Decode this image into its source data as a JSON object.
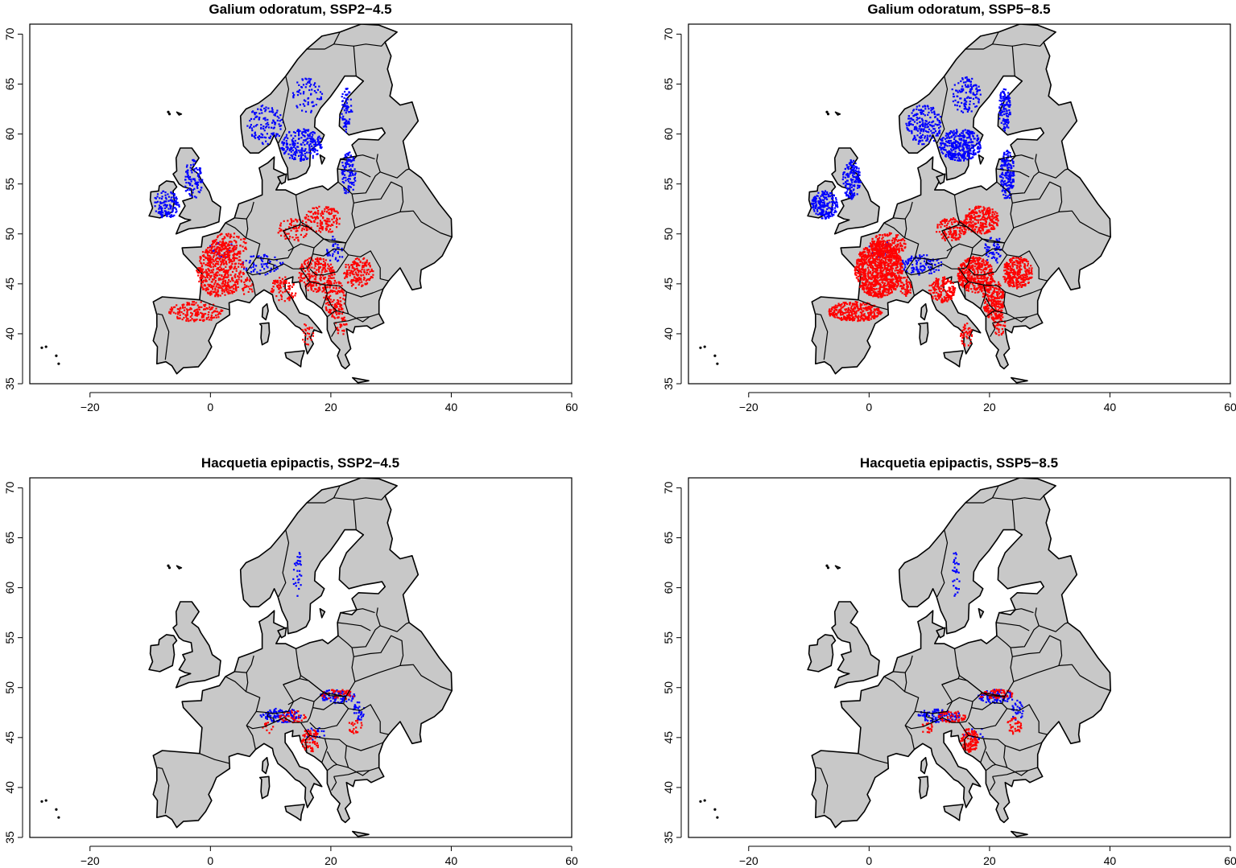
{
  "figure": {
    "panels": [
      {
        "title": "Galium odoratum, SSP2−4.5",
        "gain_level": 0.45,
        "loss_level": 0.55,
        "species": "galium"
      },
      {
        "title": "Galium odoratum, SSP5−8.5",
        "gain_level": 0.75,
        "loss_level": 1.0,
        "species": "galium"
      },
      {
        "title": "Hacquetia epipactis, SSP2−4.5",
        "gain_level": 0.5,
        "loss_level": 0.5,
        "species": "hacquetia"
      },
      {
        "title": "Hacquetia epipactis, SSP5−8.5",
        "gain_level": 0.5,
        "loss_level": 0.8,
        "species": "hacquetia"
      }
    ],
    "x_ticks": [
      "−20",
      "0",
      "20",
      "40",
      "60"
    ],
    "y_ticks": [
      "35",
      "40",
      "45",
      "50",
      "55",
      "60",
      "65",
      "70"
    ],
    "xlim": [
      -30,
      60
    ],
    "ylim": [
      35,
      71
    ],
    "colors": {
      "land": "#c8c8c8",
      "gain": "#0000ff",
      "loss": "#ff0000",
      "border": "#000000"
    }
  }
}
